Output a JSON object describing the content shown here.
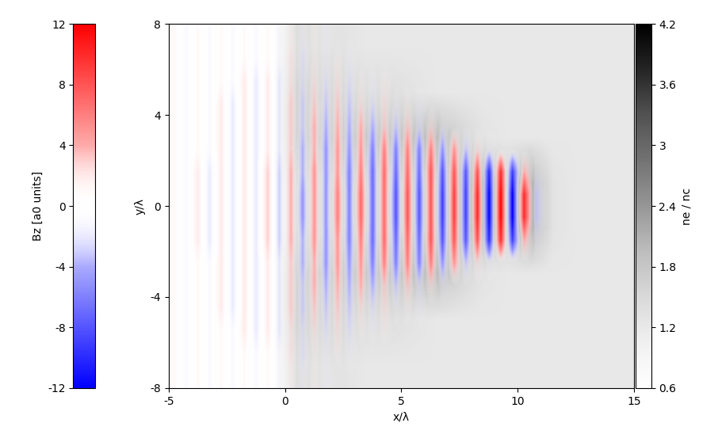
{
  "chart_data": {
    "type": "heatmap",
    "x_label": "x/λ",
    "y_label": "y/λ",
    "xlim": [
      -5,
      15
    ],
    "ylim": [
      -8,
      8
    ],
    "xticks": [
      -5,
      0,
      5,
      10,
      15
    ],
    "yticks": [
      -8,
      -4,
      0,
      4,
      8
    ],
    "density": {
      "label": "ne / nc",
      "range": [
        0.6,
        4.2
      ],
      "ticks": [
        0.6,
        1.2,
        1.8,
        2.4,
        3,
        3.6,
        4.2
      ],
      "cells": [
        [
          0.6,
          0.6,
          0.6,
          0.6,
          0.6,
          1.4,
          1.3,
          1.3,
          1.2,
          1.2,
          1.2,
          1.2,
          1.2,
          1.2,
          1.2,
          1.2,
          1.2,
          1.2,
          1.2,
          1.2
        ],
        [
          0.6,
          0.6,
          0.6,
          0.6,
          0.6,
          1.6,
          1.5,
          1.5,
          1.4,
          1.4,
          1.3,
          1.2,
          1.2,
          1.2,
          1.2,
          1.2,
          1.2,
          1.2,
          1.2,
          1.2
        ],
        [
          0.6,
          0.6,
          0.6,
          0.6,
          0.6,
          1.6,
          1.6,
          1.7,
          1.8,
          1.8,
          1.9,
          2.0,
          1.6,
          1.3,
          1.2,
          1.2,
          1.2,
          1.2,
          1.2,
          1.2
        ],
        [
          0.6,
          0.6,
          0.6,
          0.6,
          0.6,
          1.4,
          1.4,
          1.5,
          1.5,
          1.5,
          1.6,
          1.6,
          1.8,
          2.0,
          1.6,
          2.2,
          1.3,
          1.2,
          1.2,
          1.2
        ],
        [
          0.6,
          0.6,
          0.6,
          0.6,
          0.6,
          1.4,
          1.4,
          1.5,
          1.5,
          1.5,
          1.6,
          1.6,
          1.8,
          2.0,
          1.6,
          2.2,
          1.3,
          1.2,
          1.2,
          1.2
        ],
        [
          0.6,
          0.6,
          0.6,
          0.6,
          0.6,
          1.6,
          1.6,
          1.7,
          1.8,
          1.8,
          1.9,
          2.0,
          1.6,
          1.3,
          1.2,
          1.2,
          1.2,
          1.2,
          1.2,
          1.2
        ],
        [
          0.6,
          0.6,
          0.6,
          0.6,
          0.6,
          1.6,
          1.5,
          1.5,
          1.4,
          1.4,
          1.3,
          1.2,
          1.2,
          1.2,
          1.2,
          1.2,
          1.2,
          1.2,
          1.2,
          1.2
        ],
        [
          0.6,
          0.6,
          0.6,
          0.6,
          0.6,
          1.4,
          1.3,
          1.3,
          1.2,
          1.2,
          1.2,
          1.2,
          1.2,
          1.2,
          1.2,
          1.2,
          1.2,
          1.2,
          1.2,
          1.2
        ]
      ]
    },
    "field": {
      "label": "Bz [a0 units]",
      "range": [
        -12,
        12
      ],
      "ticks": [
        -12,
        -8,
        -4,
        0,
        4,
        8,
        12
      ],
      "cells": [
        [
          1,
          -1,
          1,
          -1,
          1,
          -1,
          1,
          -1,
          1,
          -1,
          1,
          -1,
          1,
          -1,
          0,
          0,
          0,
          0,
          0,
          0,
          0,
          0,
          0,
          0,
          0,
          0,
          0,
          0,
          0,
          0,
          0,
          0,
          0,
          0,
          0,
          0,
          0,
          0,
          0,
          0
        ],
        [
          1,
          -1,
          1,
          -1,
          1,
          -1,
          1,
          -1,
          1,
          -1,
          2,
          -2,
          1,
          -1,
          1,
          -1,
          0,
          0,
          0,
          0,
          0,
          0,
          0,
          0,
          0,
          0,
          0,
          0,
          0,
          0,
          0,
          0,
          0,
          0,
          0,
          0,
          0,
          0,
          0,
          0
        ],
        [
          1,
          -1,
          1,
          -1,
          1,
          -1,
          2,
          -2,
          2,
          -2,
          2,
          -2,
          2,
          -2,
          2,
          -2,
          1,
          -1,
          1,
          0,
          0,
          0,
          0,
          0,
          0,
          0,
          0,
          0,
          0,
          0,
          0,
          0,
          0,
          0,
          0,
          0,
          0,
          0,
          0,
          0
        ],
        [
          1,
          -1,
          1,
          -1,
          2,
          -2,
          2,
          -2,
          2,
          -2,
          3,
          -3,
          3,
          -3,
          3,
          -3,
          2,
          -2,
          2,
          -1,
          1,
          -1,
          0,
          0,
          0,
          0,
          0,
          0,
          0,
          0,
          0,
          0,
          0,
          0,
          0,
          0,
          0,
          0,
          0,
          0
        ],
        [
          1,
          -1,
          1,
          -1,
          2,
          -2,
          2,
          -2,
          2,
          -2,
          3,
          -3,
          4,
          -4,
          4,
          -4,
          4,
          -4,
          3,
          -3,
          3,
          -2,
          2,
          -1,
          0,
          0,
          0,
          0,
          0,
          0,
          0,
          0,
          0,
          0,
          0,
          0,
          0,
          0,
          0,
          0
        ],
        [
          1,
          -1,
          1,
          -1,
          2,
          -2,
          2,
          -2,
          2,
          -2,
          3,
          -4,
          4,
          -5,
          5,
          -5,
          5,
          -6,
          6,
          -6,
          6,
          -6,
          6,
          -5,
          5,
          -3,
          2,
          -1,
          0,
          0,
          0,
          0,
          0,
          0,
          0,
          0,
          0,
          0,
          0,
          0
        ],
        [
          1,
          -1,
          2,
          -2,
          2,
          -2,
          2,
          -2,
          3,
          -3,
          4,
          -4,
          5,
          -5,
          5,
          -6,
          6,
          -7,
          7,
          -7,
          7,
          -7,
          8,
          -8,
          8,
          -8,
          8,
          -10,
          10,
          -9,
          4,
          -1,
          0,
          0,
          0,
          0,
          0,
          0,
          0,
          0
        ],
        [
          1,
          -1,
          2,
          -2,
          2,
          -2,
          2,
          -2,
          3,
          -3,
          4,
          -5,
          5,
          -5,
          6,
          -6,
          7,
          -7,
          7,
          -8,
          8,
          -8,
          8,
          -9,
          9,
          -9,
          10,
          -12,
          12,
          -12,
          10,
          -3,
          0,
          0,
          0,
          0,
          0,
          0,
          0,
          0
        ],
        [
          1,
          -1,
          2,
          -2,
          2,
          -2,
          2,
          -2,
          3,
          -3,
          4,
          -5,
          5,
          -5,
          6,
          -6,
          7,
          -7,
          7,
          -8,
          8,
          -8,
          8,
          -9,
          9,
          -9,
          10,
          -12,
          12,
          -12,
          10,
          -3,
          0,
          0,
          0,
          0,
          0,
          0,
          0,
          0
        ],
        [
          1,
          -1,
          2,
          -2,
          2,
          -2,
          2,
          -2,
          3,
          -3,
          4,
          -4,
          5,
          -5,
          5,
          -6,
          6,
          -7,
          7,
          -7,
          7,
          -7,
          8,
          -8,
          8,
          -8,
          8,
          -10,
          10,
          -9,
          4,
          -1,
          0,
          0,
          0,
          0,
          0,
          0,
          0,
          0
        ],
        [
          1,
          -1,
          1,
          -1,
          2,
          -2,
          2,
          -2,
          2,
          -2,
          3,
          -4,
          4,
          -5,
          5,
          -5,
          5,
          -6,
          6,
          -6,
          6,
          -6,
          6,
          -5,
          5,
          -3,
          2,
          -1,
          0,
          0,
          0,
          0,
          0,
          0,
          0,
          0,
          0,
          0,
          0,
          0
        ],
        [
          1,
          -1,
          1,
          -1,
          2,
          -2,
          2,
          -2,
          2,
          -2,
          3,
          -3,
          4,
          -4,
          4,
          -4,
          4,
          -4,
          3,
          -3,
          3,
          -2,
          2,
          -1,
          0,
          0,
          0,
          0,
          0,
          0,
          0,
          0,
          0,
          0,
          0,
          0,
          0,
          0,
          0,
          0
        ],
        [
          1,
          -1,
          1,
          -1,
          2,
          -2,
          2,
          -2,
          2,
          -2,
          3,
          -3,
          3,
          -3,
          3,
          -3,
          2,
          -2,
          2,
          -1,
          1,
          -1,
          0,
          0,
          0,
          0,
          0,
          0,
          0,
          0,
          0,
          0,
          0,
          0,
          0,
          0,
          0,
          0,
          0,
          0
        ],
        [
          1,
          -1,
          1,
          -1,
          1,
          -1,
          2,
          -2,
          2,
          -2,
          2,
          -2,
          2,
          -2,
          2,
          -2,
          1,
          -1,
          1,
          0,
          0,
          0,
          0,
          0,
          0,
          0,
          0,
          0,
          0,
          0,
          0,
          0,
          0,
          0,
          0,
          0,
          0,
          0,
          0,
          0
        ],
        [
          1,
          -1,
          1,
          -1,
          1,
          -1,
          1,
          -1,
          1,
          -1,
          2,
          -2,
          1,
          -1,
          1,
          -1,
          0,
          0,
          0,
          0,
          0,
          0,
          0,
          0,
          0,
          0,
          0,
          0,
          0,
          0,
          0,
          0,
          0,
          0,
          0,
          0,
          0,
          0,
          0,
          0
        ],
        [
          1,
          -1,
          1,
          -1,
          1,
          -1,
          1,
          -1,
          1,
          -1,
          1,
          -1,
          1,
          -1,
          0,
          0,
          0,
          0,
          0,
          0,
          0,
          0,
          0,
          0,
          0,
          0,
          0,
          0,
          0,
          0,
          0,
          0,
          0,
          0,
          0,
          0,
          0,
          0,
          0,
          0
        ]
      ]
    }
  }
}
